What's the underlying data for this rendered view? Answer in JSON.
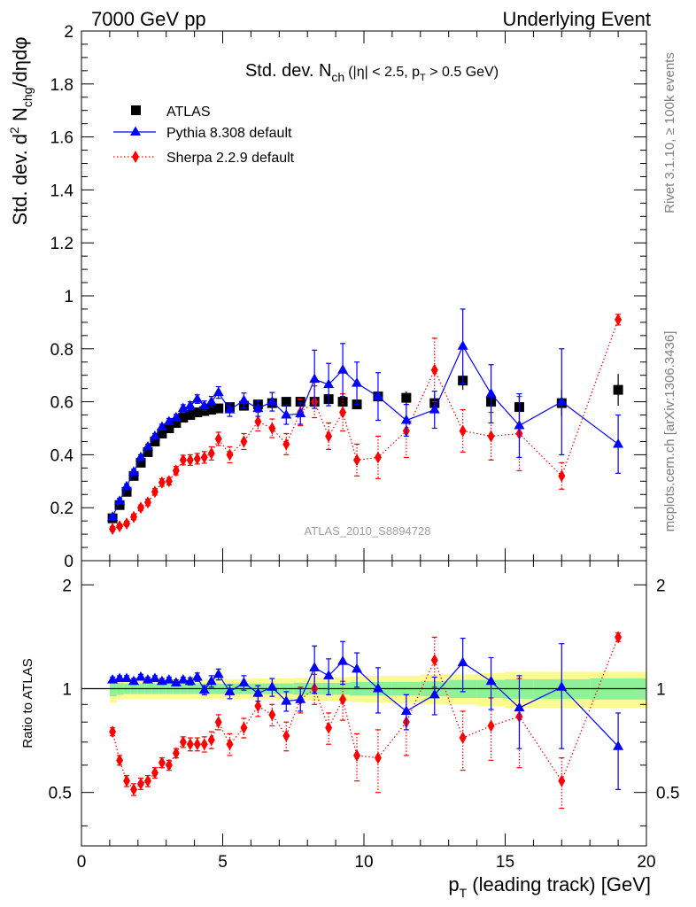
{
  "header": {
    "left_label": "7000 GeV pp",
    "right_label": "Underlying Event"
  },
  "side_labels": {
    "rivet": "Rivet 3.1.10, ≥ 100k events",
    "mcplots": "mcplots.cern.ch [arXiv:1306.3436]"
  },
  "chart_data": {
    "type": "scatter",
    "title_main": "Std. dev. N",
    "title_sub": "ch",
    "title_cond": "(|η| < 2.5, p",
    "title_cond_sub": "T",
    "title_cond_end": " > 0.5 GeV)",
    "ylabel": "Std. dev. d² N/dηdφ",
    "ylabel_parts": [
      "Std. dev. d",
      "2",
      " N",
      "chg",
      "/dηdφ"
    ],
    "xlabel": "p_T (leading track) [GeV]",
    "xlabel_parts": [
      "p",
      "T",
      " (leading track) [GeV]"
    ],
    "ratio_ylabel": "Ratio to ATLAS",
    "analysis_label": "ATLAS_2010_S8894728",
    "xlim": [
      0,
      20
    ],
    "ylim": [
      0,
      2
    ],
    "ratio_ylim": [
      0.35,
      2.35
    ],
    "x_ticks": [
      "0",
      "5",
      "10",
      "15",
      "20"
    ],
    "y_ticks": [
      "0",
      "0.2",
      "0.4",
      "0.6",
      "0.8",
      "1",
      "1.2",
      "1.4",
      "1.6",
      "1.8",
      "2"
    ],
    "ratio_ticks": [
      "0.5",
      "1",
      "2"
    ],
    "grid": false,
    "legend_position": "top-left",
    "series": [
      {
        "name": "ATLAS",
        "color": "#000000",
        "marker": "square",
        "line": "none",
        "x": [
          1.1,
          1.35,
          1.6,
          1.85,
          2.1,
          2.35,
          2.6,
          2.85,
          3.1,
          3.35,
          3.6,
          3.85,
          4.1,
          4.35,
          4.6,
          4.85,
          5.25,
          5.75,
          6.25,
          6.75,
          7.25,
          7.75,
          8.25,
          8.75,
          9.25,
          9.75,
          10.5,
          11.5,
          12.5,
          13.5,
          14.5,
          15.5,
          17.0,
          19.0
        ],
        "y": [
          0.16,
          0.21,
          0.26,
          0.32,
          0.37,
          0.41,
          0.45,
          0.48,
          0.5,
          0.52,
          0.54,
          0.55,
          0.56,
          0.565,
          0.57,
          0.575,
          0.58,
          0.585,
          0.59,
          0.595,
          0.6,
          0.6,
          0.6,
          0.61,
          0.6,
          0.59,
          0.62,
          0.615,
          0.595,
          0.68,
          0.6,
          0.58,
          0.595,
          0.645
        ],
        "yerr": [
          0.008,
          0.008,
          0.008,
          0.008,
          0.008,
          0.008,
          0.008,
          0.008,
          0.008,
          0.008,
          0.008,
          0.008,
          0.008,
          0.008,
          0.008,
          0.008,
          0.01,
          0.01,
          0.01,
          0.01,
          0.012,
          0.012,
          0.014,
          0.016,
          0.016,
          0.018,
          0.02,
          0.024,
          0.03,
          0.035,
          0.04,
          0.045,
          0.05,
          0.06
        ]
      },
      {
        "name": "Pythia 8.308 default",
        "color": "#0000ff",
        "marker": "triangle",
        "line": "solid",
        "x": [
          1.1,
          1.35,
          1.6,
          1.85,
          2.1,
          2.35,
          2.6,
          2.85,
          3.1,
          3.35,
          3.6,
          3.85,
          4.1,
          4.35,
          4.6,
          4.85,
          5.25,
          5.75,
          6.25,
          6.75,
          7.25,
          7.75,
          8.25,
          8.75,
          9.25,
          9.75,
          10.5,
          11.5,
          12.5,
          13.5,
          14.5,
          15.5,
          17.0,
          19.0
        ],
        "y": [
          0.165,
          0.225,
          0.28,
          0.335,
          0.39,
          0.43,
          0.47,
          0.505,
          0.525,
          0.54,
          0.575,
          0.585,
          0.61,
          0.585,
          0.6,
          0.635,
          0.57,
          0.605,
          0.575,
          0.6,
          0.55,
          0.555,
          0.685,
          0.665,
          0.72,
          0.67,
          0.62,
          0.53,
          0.57,
          0.81,
          0.63,
          0.51,
          0.6,
          0.44
        ],
        "yerr": [
          0.01,
          0.01,
          0.01,
          0.01,
          0.01,
          0.01,
          0.01,
          0.01,
          0.012,
          0.012,
          0.014,
          0.015,
          0.016,
          0.018,
          0.02,
          0.022,
          0.025,
          0.028,
          0.03,
          0.035,
          0.035,
          0.04,
          0.11,
          0.08,
          0.1,
          0.08,
          0.09,
          0.06,
          0.07,
          0.14,
          0.11,
          0.12,
          0.2,
          0.11
        ]
      },
      {
        "name": "Sherpa 2.2.9 default",
        "color": "#ff0000",
        "marker": "diamond",
        "line": "dotted",
        "x": [
          1.1,
          1.35,
          1.6,
          1.85,
          2.1,
          2.35,
          2.6,
          2.85,
          3.1,
          3.35,
          3.6,
          3.85,
          4.1,
          4.35,
          4.6,
          4.85,
          5.25,
          5.75,
          6.25,
          6.75,
          7.25,
          7.75,
          8.25,
          8.75,
          9.25,
          9.75,
          10.5,
          11.5,
          12.5,
          13.5,
          14.5,
          15.5,
          17.0,
          19.0
        ],
        "y": [
          0.12,
          0.13,
          0.14,
          0.165,
          0.2,
          0.22,
          0.26,
          0.295,
          0.3,
          0.34,
          0.38,
          0.38,
          0.385,
          0.39,
          0.405,
          0.46,
          0.4,
          0.45,
          0.525,
          0.5,
          0.44,
          0.56,
          0.6,
          0.47,
          0.56,
          0.38,
          0.39,
          0.49,
          0.72,
          0.49,
          0.47,
          0.48,
          0.32,
          0.91
        ],
        "yerr": [
          0.008,
          0.008,
          0.008,
          0.01,
          0.01,
          0.012,
          0.012,
          0.014,
          0.014,
          0.016,
          0.018,
          0.02,
          0.02,
          0.022,
          0.025,
          0.025,
          0.03,
          0.03,
          0.035,
          0.035,
          0.04,
          0.05,
          0.06,
          0.05,
          0.07,
          0.06,
          0.08,
          0.1,
          0.12,
          0.08,
          0.09,
          0.14,
          0.05,
          0.02
        ]
      }
    ],
    "ratio_series": [
      {
        "name": "Pythia 8.308 default",
        "color": "#0000ff",
        "y": [
          1.06,
          1.07,
          1.07,
          1.05,
          1.08,
          1.06,
          1.07,
          1.05,
          1.06,
          1.04,
          1.06,
          1.05,
          1.08,
          0.99,
          1.05,
          1.1,
          0.98,
          1.04,
          0.97,
          1.01,
          0.92,
          0.93,
          1.15,
          1.09,
          1.2,
          1.14,
          1.0,
          0.86,
          0.96,
          1.19,
          1.05,
          0.88,
          1.01,
          0.68
        ],
        "yerr": [
          0.02,
          0.02,
          0.02,
          0.02,
          0.02,
          0.02,
          0.02,
          0.02,
          0.02,
          0.02,
          0.02,
          0.025,
          0.03,
          0.03,
          0.04,
          0.04,
          0.045,
          0.05,
          0.05,
          0.06,
          0.06,
          0.07,
          0.18,
          0.13,
          0.17,
          0.13,
          0.15,
          0.1,
          0.12,
          0.21,
          0.18,
          0.21,
          0.34,
          0.17
        ]
      },
      {
        "name": "Sherpa 2.2.9 default",
        "color": "#ff0000",
        "y": [
          0.75,
          0.62,
          0.54,
          0.51,
          0.53,
          0.54,
          0.57,
          0.61,
          0.6,
          0.65,
          0.7,
          0.69,
          0.69,
          0.69,
          0.71,
          0.8,
          0.69,
          0.77,
          0.89,
          0.84,
          0.73,
          0.93,
          1.0,
          0.77,
          0.93,
          0.64,
          0.63,
          0.8,
          1.21,
          0.72,
          0.78,
          0.83,
          0.54,
          1.41
        ],
        "yerr": [
          0.02,
          0.02,
          0.02,
          0.02,
          0.02,
          0.02,
          0.02,
          0.02,
          0.02,
          0.02,
          0.025,
          0.03,
          0.03,
          0.035,
          0.04,
          0.04,
          0.05,
          0.05,
          0.06,
          0.06,
          0.07,
          0.08,
          0.1,
          0.08,
          0.12,
          0.1,
          0.13,
          0.16,
          0.2,
          0.14,
          0.16,
          0.24,
          0.09,
          0.04
        ]
      }
    ],
    "ratio_band": {
      "x_edges": [
        1,
        1.25,
        1.5,
        1.75,
        2,
        2.25,
        2.5,
        2.75,
        3,
        3.25,
        3.5,
        3.75,
        4,
        4.25,
        4.5,
        4.75,
        5,
        5.5,
        6,
        6.5,
        7,
        7.5,
        8,
        8.5,
        9,
        9.5,
        10,
        11,
        12,
        13,
        14,
        15,
        16,
        18,
        20
      ],
      "green_half": [
        0.05,
        0.04,
        0.035,
        0.035,
        0.035,
        0.035,
        0.035,
        0.035,
        0.035,
        0.035,
        0.035,
        0.035,
        0.035,
        0.035,
        0.035,
        0.035,
        0.035,
        0.035,
        0.035,
        0.035,
        0.035,
        0.04,
        0.04,
        0.04,
        0.04,
        0.045,
        0.045,
        0.045,
        0.05,
        0.06,
        0.06,
        0.065,
        0.065,
        0.07
      ],
      "yellow_half": [
        0.09,
        0.07,
        0.065,
        0.065,
        0.065,
        0.065,
        0.065,
        0.065,
        0.065,
        0.065,
        0.065,
        0.065,
        0.065,
        0.065,
        0.065,
        0.065,
        0.065,
        0.065,
        0.07,
        0.07,
        0.07,
        0.075,
        0.075,
        0.08,
        0.08,
        0.085,
        0.09,
        0.09,
        0.1,
        0.1,
        0.11,
        0.12,
        0.12,
        0.12
      ],
      "green_color": "#8ff09a",
      "yellow_color": "#fbfb91"
    }
  }
}
